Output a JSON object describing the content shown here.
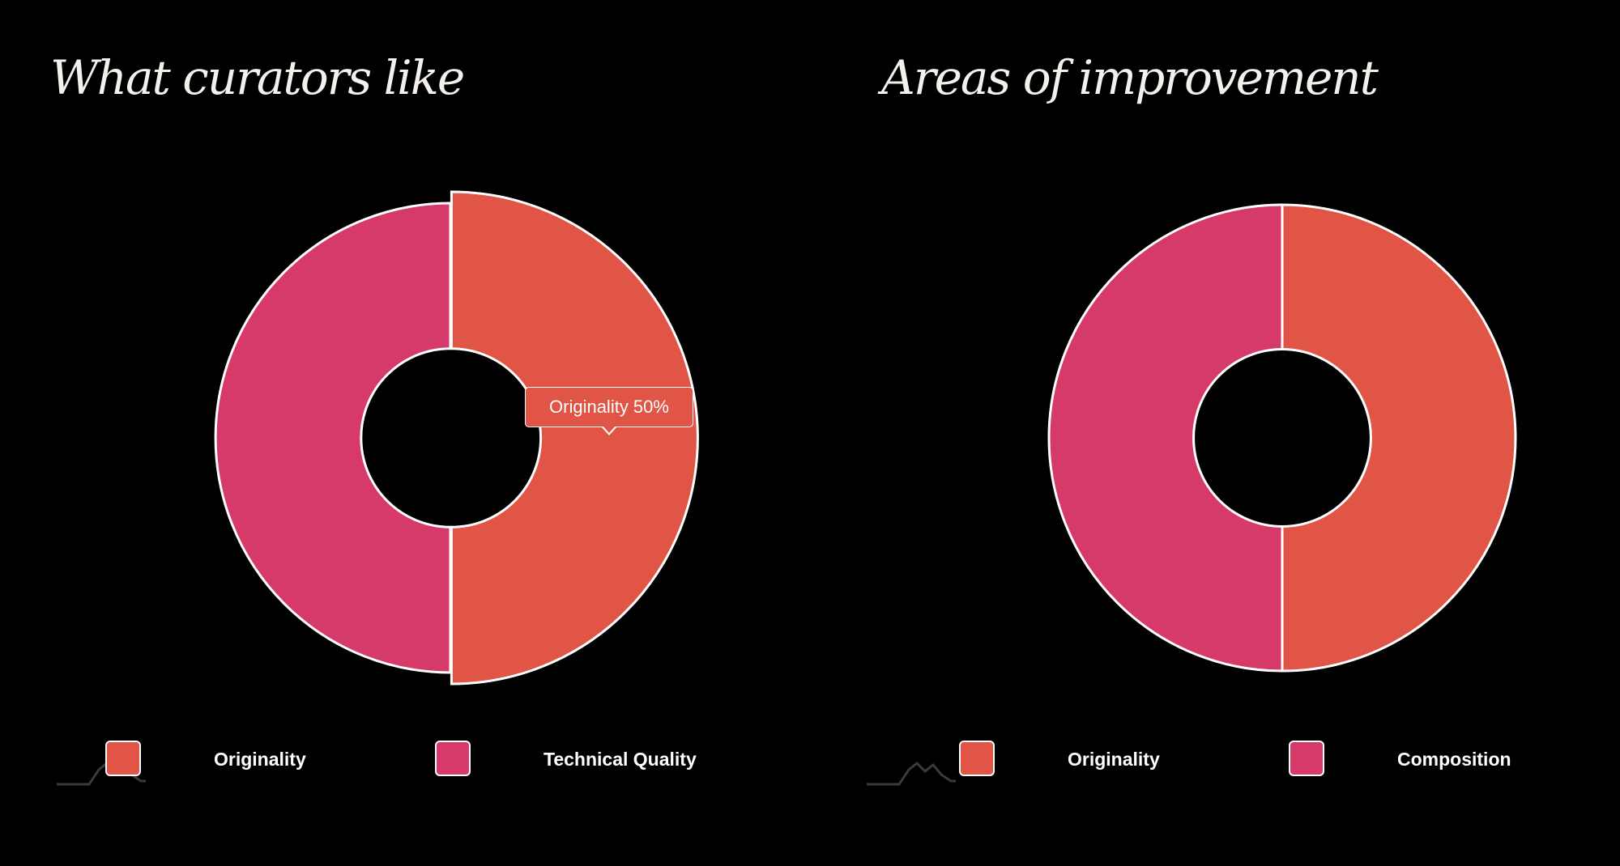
{
  "colors": {
    "background": "#000000",
    "originality": "#e05545",
    "second_series": "#d63a68",
    "outline": "#ffffff"
  },
  "chart_data": [
    {
      "type": "pie",
      "title": "What curators like",
      "categories": [
        "Originality",
        "Technical Quality"
      ],
      "values": [
        50,
        50
      ],
      "colors": [
        "#e05545",
        "#d63a68"
      ],
      "hole_ratio": 0.38,
      "highlighted": "Originality",
      "tooltip": "Originality 50%",
      "data_label": "Originality: 50.0%",
      "legend_position": "bottom"
    },
    {
      "type": "pie",
      "title": "Areas of improvement",
      "categories": [
        "Originality",
        "Composition"
      ],
      "values": [
        50,
        50
      ],
      "colors": [
        "#e05545",
        "#d63a68"
      ],
      "hole_ratio": 0.38,
      "legend_position": "bottom"
    }
  ]
}
